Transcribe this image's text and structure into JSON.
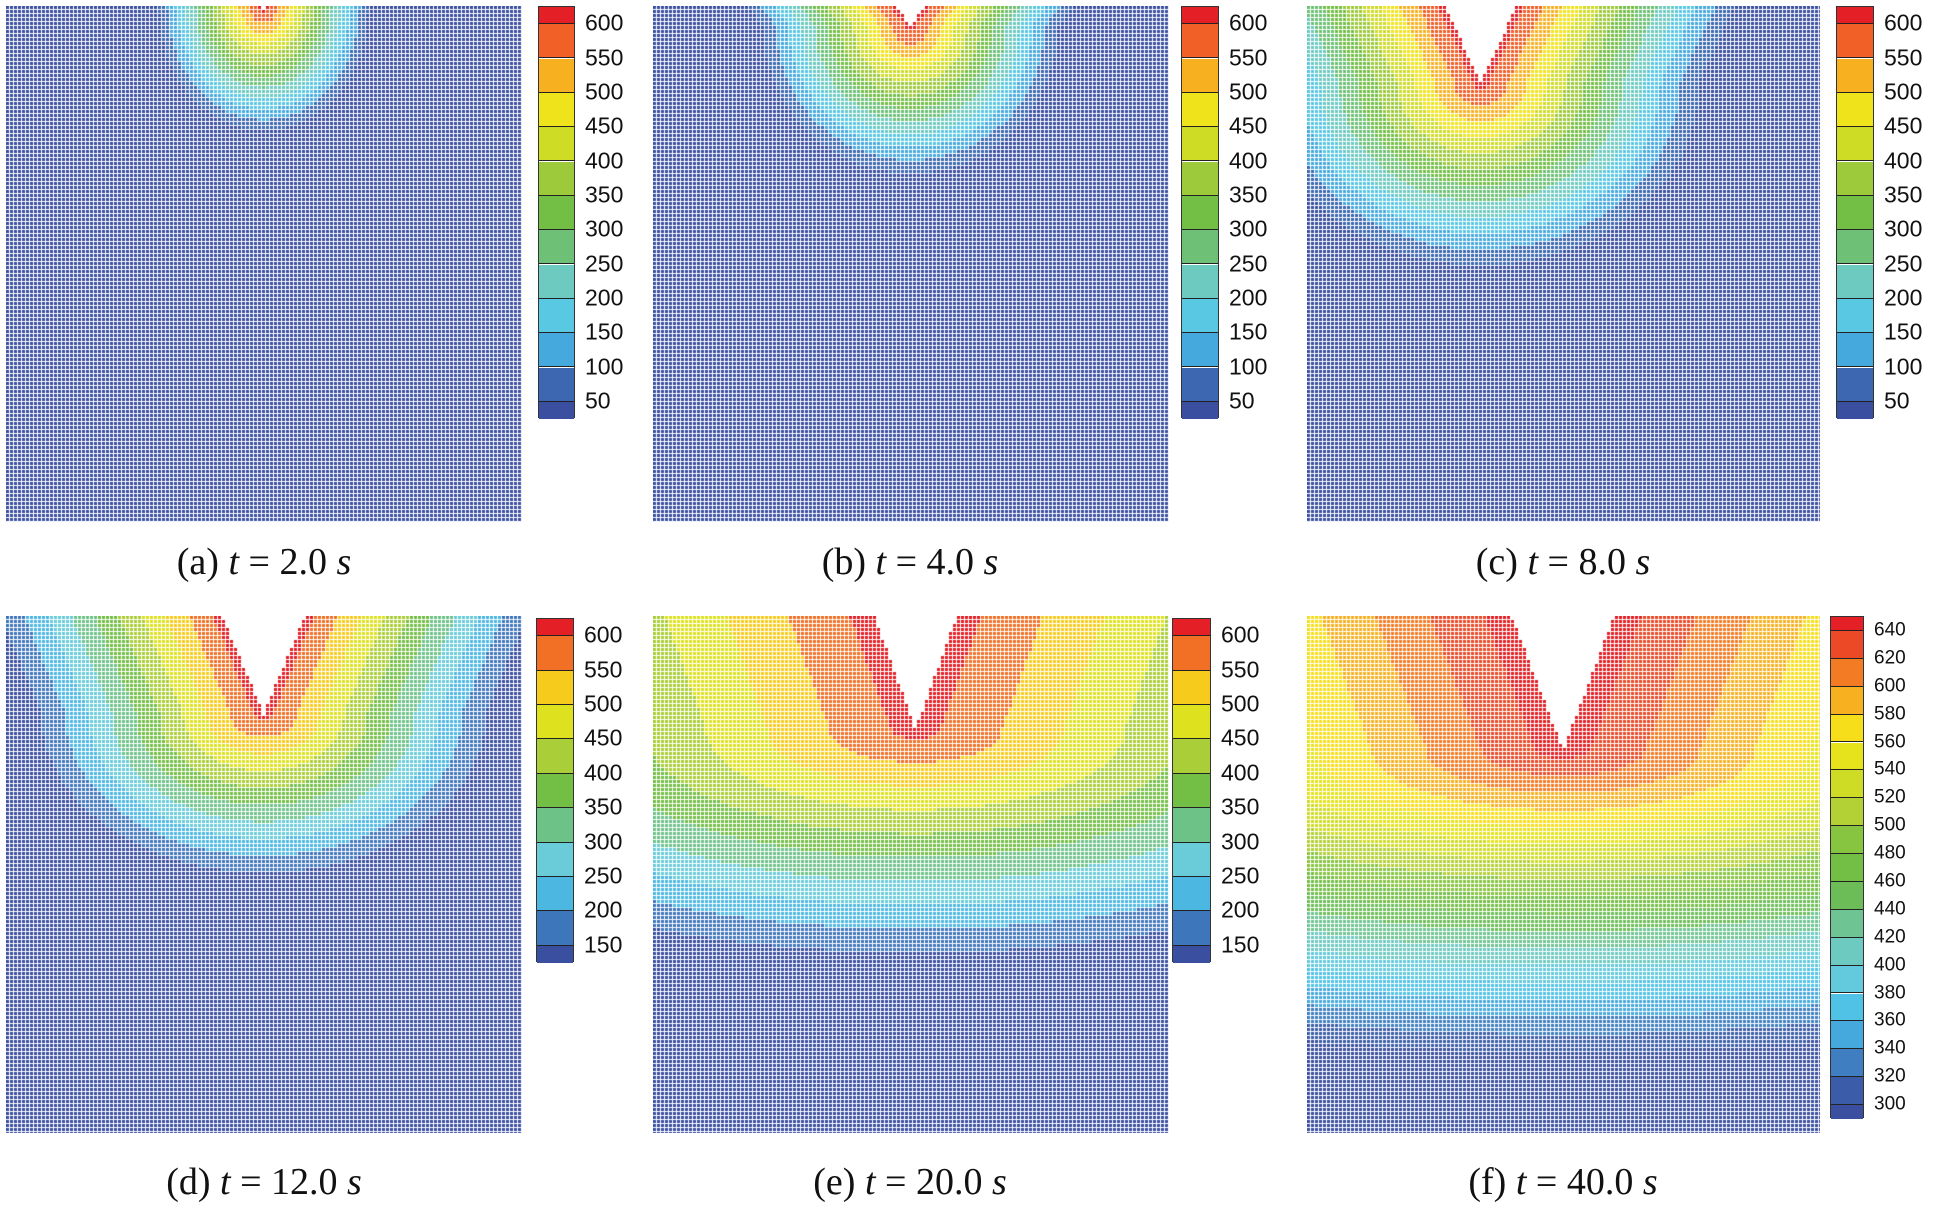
{
  "palette": [
    "#3a4fa0",
    "#3c62ad",
    "#43a3db",
    "#52c6e6",
    "#6ccdd6",
    "#6ec498",
    "#6bbb46",
    "#7ac043",
    "#b6d134",
    "#dbe21e",
    "#f6e51a",
    "#f7a520",
    "#ef5a28",
    "#e41f26"
  ],
  "chart_data": [
    {
      "type": "heatmap",
      "caption": {
        "tag": "(a)",
        "var": "t",
        "eq": "=",
        "value": "2.0",
        "unit": "s"
      },
      "colorbar_ticks": [
        600,
        550,
        500,
        450,
        400,
        350,
        300,
        250,
        200,
        150,
        100,
        50
      ]
    },
    {
      "type": "heatmap",
      "caption": {
        "tag": "(b)",
        "var": "t",
        "eq": "=",
        "value": "4.0",
        "unit": "s"
      },
      "colorbar_ticks": [
        600,
        550,
        500,
        450,
        400,
        350,
        300,
        250,
        200,
        150,
        100,
        50
      ]
    },
    {
      "type": "heatmap",
      "caption": {
        "tag": "(c)",
        "var": "t",
        "eq": "=",
        "value": "8.0",
        "unit": "s"
      },
      "colorbar_ticks": [
        600,
        550,
        500,
        450,
        400,
        350,
        300,
        250,
        200,
        150,
        100,
        50
      ]
    },
    {
      "type": "heatmap",
      "caption": {
        "tag": "(d)",
        "var": "t",
        "eq": "=",
        "value": "12.0",
        "unit": "s"
      },
      "colorbar_ticks": [
        600,
        550,
        500,
        450,
        400,
        350,
        300,
        250,
        200,
        150
      ]
    },
    {
      "type": "heatmap",
      "caption": {
        "tag": "(e)",
        "var": "t",
        "eq": "=",
        "value": "20.0",
        "unit": "s"
      },
      "colorbar_ticks": [
        600,
        550,
        500,
        450,
        400,
        350,
        300,
        250,
        200,
        150
      ]
    },
    {
      "type": "heatmap",
      "caption": {
        "tag": "(f)",
        "var": "t",
        "eq": "=",
        "value": "40.0",
        "unit": "s"
      },
      "colorbar_ticks": [
        640,
        620,
        600,
        580,
        560,
        540,
        520,
        500,
        480,
        460,
        440,
        420,
        400,
        380,
        360,
        340,
        320,
        300
      ]
    }
  ]
}
